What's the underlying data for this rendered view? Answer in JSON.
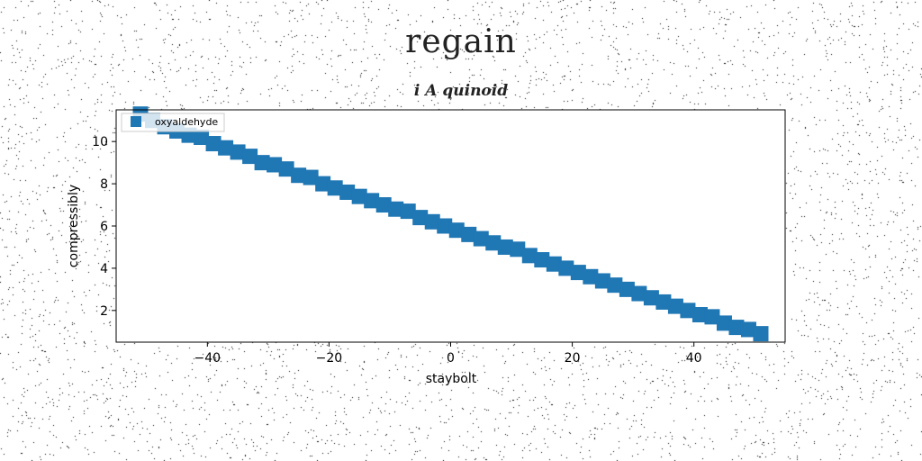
{
  "suptitle": "regain",
  "chart_data": {
    "type": "scatter",
    "title": "i A quinoid",
    "xlabel": "staybolt",
    "ylabel": "compressibly",
    "xlim": [
      -55,
      55
    ],
    "ylim": [
      0.5,
      11.5
    ],
    "xticks": [
      -40,
      -20,
      0,
      20,
      40
    ],
    "xtick_labels": [
      "−40",
      "−20",
      "0",
      "20",
      "40"
    ],
    "yticks": [
      2,
      4,
      6,
      8,
      10
    ],
    "ytick_labels": [
      "2",
      "4",
      "6",
      "8",
      "10"
    ],
    "legend": {
      "position": "upper-left"
    },
    "series": [
      {
        "name": "oxyaldehyde",
        "color": "#1f77b4",
        "marker": "square",
        "x": [
          -51,
          -49,
          -47,
          -45,
          -43,
          -41,
          -39,
          -37,
          -35,
          -33,
          -31,
          -29,
          -27,
          -25,
          -23,
          -21,
          -19,
          -17,
          -15,
          -13,
          -11,
          -9,
          -7,
          -5,
          -3,
          -1,
          1,
          3,
          5,
          7,
          9,
          11,
          13,
          15,
          17,
          19,
          21,
          23,
          25,
          27,
          29,
          31,
          33,
          35,
          37,
          39,
          41,
          43,
          45,
          47,
          49,
          51
        ],
        "y": [
          11.3,
          11.0,
          10.7,
          10.5,
          10.3,
          10.2,
          9.9,
          9.7,
          9.5,
          9.3,
          9.0,
          8.9,
          8.7,
          8.4,
          8.3,
          8.0,
          7.8,
          7.6,
          7.4,
          7.2,
          7.0,
          6.8,
          6.7,
          6.4,
          6.2,
          6.0,
          5.8,
          5.6,
          5.4,
          5.2,
          5.0,
          4.9,
          4.6,
          4.4,
          4.2,
          4.0,
          3.8,
          3.6,
          3.4,
          3.2,
          3.0,
          2.8,
          2.6,
          2.4,
          2.2,
          2.0,
          1.8,
          1.7,
          1.4,
          1.2,
          1.1,
          0.9
        ]
      }
    ]
  }
}
